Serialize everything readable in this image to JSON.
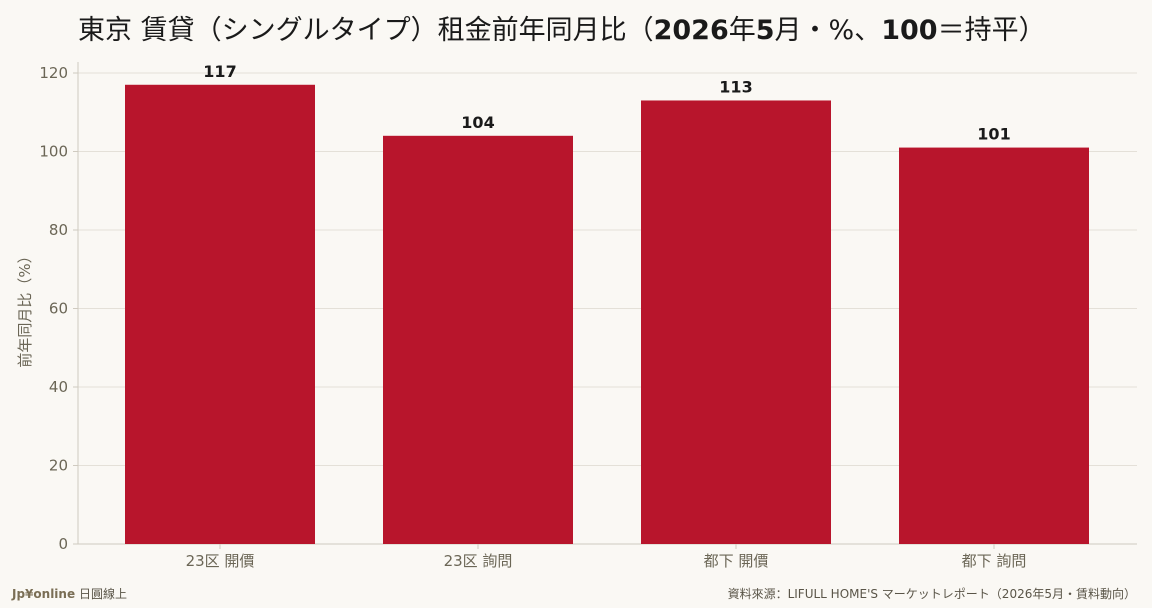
{
  "header": {
    "title_main": "東京 賃貸（シングルタイプ）租金前年同月比（",
    "title_bold1": "2026",
    "title_mid1": "年",
    "title_bold2": "5",
    "title_mid2": "月・%、",
    "title_bold3": "100",
    "title_end": "＝持平）"
  },
  "footer": {
    "brand": "Jp¥online",
    "brand_suffix": "日圓線上",
    "source": "資料來源：LIFULL HOME'S マーケットレポート（2026年5月・賃料動向）"
  },
  "chart_data": {
    "type": "bar",
    "categories": [
      "23区 開價",
      "23区 詢問",
      "都下 開價",
      "都下 詢問"
    ],
    "values": [
      117,
      104,
      113,
      101
    ],
    "value_labels": [
      "117",
      "104",
      "113",
      "101"
    ],
    "ylabel": "前年同月比（%）",
    "ylim": [
      0,
      120
    ],
    "yticks": [
      0,
      20,
      40,
      60,
      80,
      100,
      120
    ],
    "grid": true,
    "colors": {
      "bar": "#b8152c",
      "grid": "#e4e0d8",
      "axis": "#cfcac0"
    }
  }
}
